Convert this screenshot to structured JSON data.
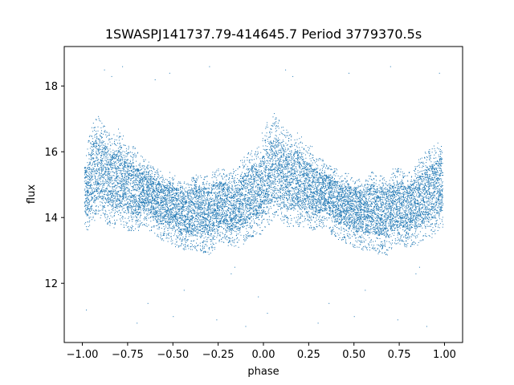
{
  "chart_data": {
    "type": "scatter",
    "title": "1SWASPJ141737.79-414645.7 Period 3779370.5s",
    "xlabel": "phase",
    "ylabel": "flux",
    "xlim": [
      -1.1,
      1.1
    ],
    "ylim": [
      10.2,
      19.2
    ],
    "x_ticks": [
      -1.0,
      -0.75,
      -0.5,
      -0.25,
      0.0,
      0.25,
      0.5,
      0.75,
      1.0
    ],
    "x_tick_labels": [
      "−1.00",
      "−0.75",
      "−0.50",
      "−0.25",
      "0.00",
      "0.25",
      "0.50",
      "0.75",
      "1.00"
    ],
    "y_ticks": [
      12,
      14,
      16,
      18
    ],
    "y_tick_labels": [
      "12",
      "14",
      "16",
      "18"
    ],
    "grid": false,
    "marker_color": "#1f77b4",
    "series": [
      {
        "x": [
          -0.98,
          -0.96,
          -0.94,
          -0.92,
          -0.9,
          -0.88,
          -0.86,
          -0.84,
          -0.82,
          -0.8,
          -0.78,
          -0.76,
          -0.74,
          -0.72,
          -0.7,
          -0.68,
          -0.66,
          -0.64,
          -0.62,
          -0.6,
          -0.58,
          -0.56,
          -0.54,
          -0.52,
          -0.5,
          -0.48,
          -0.46,
          -0.44,
          -0.42,
          -0.4,
          -0.38,
          -0.36,
          -0.34,
          -0.32,
          -0.3,
          -0.28,
          -0.26,
          -0.24,
          -0.22,
          -0.2,
          -0.18,
          -0.16,
          -0.14,
          -0.12,
          -0.1,
          -0.08,
          -0.06,
          -0.04,
          -0.02,
          0.0,
          0.02,
          0.04,
          0.06,
          0.08,
          0.1,
          0.12,
          0.14,
          0.16,
          0.18,
          0.2,
          0.22,
          0.24,
          0.26,
          0.28,
          0.3,
          0.32,
          0.34,
          0.36,
          0.38,
          0.4,
          0.42,
          0.44,
          0.46,
          0.48,
          0.5,
          0.52,
          0.54,
          0.56,
          0.58,
          0.6,
          0.62,
          0.64,
          0.66,
          0.68,
          0.7,
          0.72,
          0.74,
          0.76,
          0.78,
          0.8,
          0.82,
          0.84,
          0.86,
          0.88,
          0.9,
          0.92,
          0.94,
          0.96,
          0.98
        ],
        "y_center": [
          14.8,
          15.1,
          15.4,
          15.5,
          15.5,
          15.3,
          15.2,
          15.1,
          15.1,
          15.2,
          15.1,
          15.0,
          14.9,
          14.9,
          14.8,
          14.8,
          14.8,
          14.8,
          14.7,
          14.6,
          14.5,
          14.4,
          14.4,
          14.4,
          14.3,
          14.3,
          14.2,
          14.2,
          14.2,
          14.2,
          14.3,
          14.2,
          14.2,
          14.2,
          14.1,
          14.3,
          14.4,
          14.4,
          14.4,
          14.3,
          14.3,
          14.4,
          14.4,
          14.5,
          14.6,
          14.7,
          14.8,
          14.8,
          14.9,
          15.0,
          15.2,
          15.4,
          15.5,
          15.5,
          15.3,
          15.2,
          15.1,
          15.1,
          15.2,
          15.1,
          15.0,
          14.9,
          14.9,
          14.8,
          14.8,
          14.8,
          14.8,
          14.7,
          14.6,
          14.5,
          14.4,
          14.4,
          14.4,
          14.3,
          14.3,
          14.2,
          14.2,
          14.2,
          14.2,
          14.3,
          14.2,
          14.2,
          14.2,
          14.1,
          14.3,
          14.4,
          14.4,
          14.4,
          14.3,
          14.3,
          14.4,
          14.4,
          14.5,
          14.6,
          14.7,
          14.8,
          14.8,
          14.9,
          15.0
        ],
        "y_upper": [
          16.1,
          16.6,
          17.0,
          17.1,
          17.0,
          16.8,
          16.6,
          16.5,
          16.6,
          16.7,
          16.5,
          16.3,
          16.2,
          16.2,
          16.0,
          15.9,
          15.8,
          15.7,
          15.6,
          15.5,
          15.5,
          15.3,
          15.3,
          15.4,
          15.3,
          15.2,
          15.2,
          15.1,
          15.2,
          15.3,
          15.4,
          15.3,
          15.3,
          15.3,
          15.2,
          15.4,
          15.5,
          15.5,
          15.5,
          15.4,
          15.4,
          15.5,
          15.6,
          15.8,
          15.9,
          16.0,
          16.1,
          16.2,
          16.3,
          16.6,
          16.9,
          17.1,
          17.2,
          17.0,
          16.8,
          16.7,
          16.6,
          16.5,
          16.6,
          16.5,
          16.3,
          16.2,
          16.2,
          16.0,
          15.9,
          15.8,
          15.7,
          15.6,
          15.5,
          15.5,
          15.3,
          15.3,
          15.4,
          15.3,
          15.2,
          15.2,
          15.1,
          15.2,
          15.3,
          15.4,
          15.3,
          15.3,
          15.3,
          15.2,
          15.4,
          15.5,
          15.5,
          15.5,
          15.4,
          15.4,
          15.5,
          15.6,
          15.8,
          15.9,
          16.0,
          16.1,
          16.2,
          16.3,
          16.4
        ],
        "y_lower": [
          13.6,
          13.7,
          13.9,
          14.0,
          14.0,
          13.9,
          13.8,
          13.7,
          13.7,
          13.8,
          13.7,
          13.7,
          13.6,
          13.6,
          13.6,
          13.7,
          13.7,
          13.7,
          13.6,
          13.5,
          13.4,
          13.3,
          13.3,
          13.2,
          13.2,
          13.1,
          13.1,
          13.0,
          13.0,
          13.0,
          13.0,
          13.0,
          12.9,
          12.9,
          12.8,
          13.0,
          13.2,
          13.2,
          13.2,
          13.1,
          13.1,
          13.1,
          13.1,
          13.2,
          13.3,
          13.4,
          13.4,
          13.5,
          13.5,
          13.6,
          13.8,
          13.9,
          14.0,
          14.0,
          13.9,
          13.8,
          13.7,
          13.7,
          13.8,
          13.7,
          13.7,
          13.6,
          13.6,
          13.6,
          13.7,
          13.7,
          13.7,
          13.6,
          13.5,
          13.4,
          13.3,
          13.3,
          13.2,
          13.2,
          13.1,
          13.1,
          13.0,
          13.0,
          13.0,
          13.0,
          13.0,
          12.9,
          12.9,
          12.8,
          13.0,
          13.2,
          13.2,
          13.2,
          13.1,
          13.1,
          13.1,
          13.1,
          13.2,
          13.3,
          13.4,
          13.4,
          13.5,
          13.5,
          13.6
        ]
      }
    ],
    "outliers": [
      {
        "x": -0.88,
        "y": 18.5
      },
      {
        "x": -0.84,
        "y": 18.3
      },
      {
        "x": -0.78,
        "y": 18.6
      },
      {
        "x": -0.7,
        "y": 10.8
      },
      {
        "x": -0.64,
        "y": 11.4
      },
      {
        "x": -0.52,
        "y": 18.4
      },
      {
        "x": -0.5,
        "y": 11.0
      },
      {
        "x": -0.44,
        "y": 11.8
      },
      {
        "x": -0.26,
        "y": 10.9
      },
      {
        "x": -0.18,
        "y": 12.3
      },
      {
        "x": -0.16,
        "y": 12.5
      },
      {
        "x": -0.1,
        "y": 10.7
      },
      {
        "x": -0.03,
        "y": 11.6
      },
      {
        "x": 0.12,
        "y": 18.5
      },
      {
        "x": 0.16,
        "y": 18.3
      },
      {
        "x": 0.3,
        "y": 10.8
      },
      {
        "x": 0.36,
        "y": 11.4
      },
      {
        "x": 0.47,
        "y": 18.4
      },
      {
        "x": 0.5,
        "y": 11.0
      },
      {
        "x": 0.56,
        "y": 11.8
      },
      {
        "x": 0.74,
        "y": 10.9
      },
      {
        "x": 0.84,
        "y": 12.3
      },
      {
        "x": 0.86,
        "y": 12.5
      },
      {
        "x": 0.9,
        "y": 10.7
      },
      {
        "x": 0.97,
        "y": 18.4
      },
      {
        "x": -0.98,
        "y": 11.2
      },
      {
        "x": 0.02,
        "y": 11.1
      },
      {
        "x": -0.3,
        "y": 18.6
      },
      {
        "x": 0.7,
        "y": 18.6
      },
      {
        "x": -0.6,
        "y": 18.2
      }
    ]
  }
}
